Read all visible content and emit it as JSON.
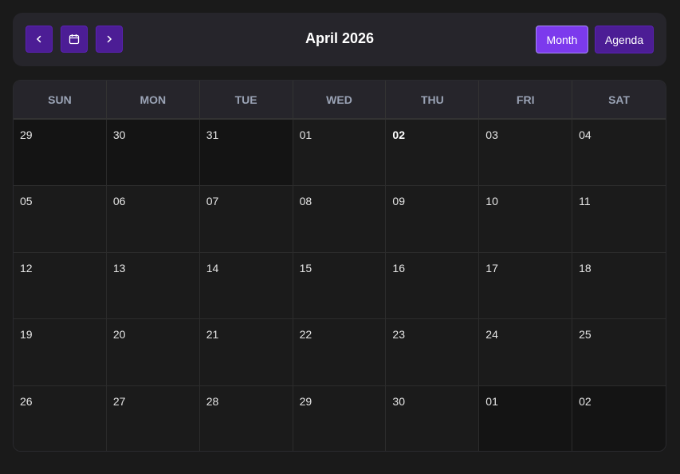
{
  "toolbar": {
    "title": "April 2026",
    "prev_icon": "chevron-left",
    "today_icon": "calendar",
    "next_icon": "chevron-right",
    "views": [
      {
        "label": "Month",
        "active": true
      },
      {
        "label": "Agenda",
        "active": false
      }
    ]
  },
  "colors": {
    "accent": "#7c3aed",
    "button": "#4c1d95"
  },
  "weekdays": [
    "SUN",
    "MON",
    "TUE",
    "WED",
    "THU",
    "FRI",
    "SAT"
  ],
  "today": "02",
  "days": [
    {
      "d": "29",
      "off": true
    },
    {
      "d": "30",
      "off": true
    },
    {
      "d": "31",
      "off": true
    },
    {
      "d": "01"
    },
    {
      "d": "02",
      "today": true
    },
    {
      "d": "03"
    },
    {
      "d": "04"
    },
    {
      "d": "05"
    },
    {
      "d": "06"
    },
    {
      "d": "07"
    },
    {
      "d": "08"
    },
    {
      "d": "09"
    },
    {
      "d": "10"
    },
    {
      "d": "11"
    },
    {
      "d": "12"
    },
    {
      "d": "13"
    },
    {
      "d": "14"
    },
    {
      "d": "15"
    },
    {
      "d": "16"
    },
    {
      "d": "17"
    },
    {
      "d": "18"
    },
    {
      "d": "19"
    },
    {
      "d": "20"
    },
    {
      "d": "21"
    },
    {
      "d": "22"
    },
    {
      "d": "23"
    },
    {
      "d": "24"
    },
    {
      "d": "25"
    },
    {
      "d": "26"
    },
    {
      "d": "27"
    },
    {
      "d": "28"
    },
    {
      "d": "29"
    },
    {
      "d": "30"
    },
    {
      "d": "01",
      "off": true
    },
    {
      "d": "02",
      "off": true
    }
  ]
}
